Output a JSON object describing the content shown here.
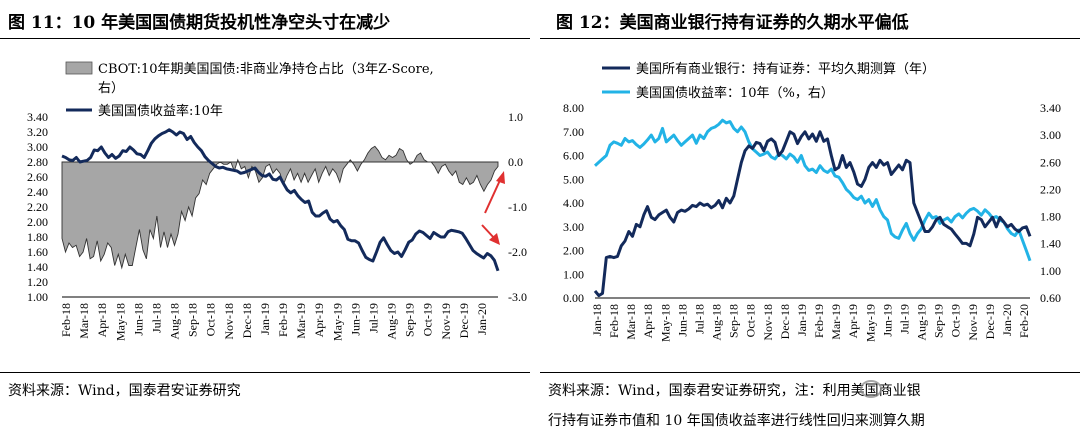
{
  "figure11": {
    "title": "图 11：10 年美国国债期货投机性净空头寸在减少",
    "source": "资料来源：Wind，国泰君安证券研究",
    "legend": {
      "area_label_line1": "CBOT:10年期美国国债:非商业净持仓占比（3年Z-Score,",
      "area_label_line2": "右）",
      "line_label": "美国国债收益率:10年"
    },
    "left_ticks": [
      "3.40",
      "3.20",
      "3.00",
      "2.80",
      "2.60",
      "2.40",
      "2.20",
      "2.00",
      "1.80",
      "1.60",
      "1.40",
      "1.20",
      "1.00"
    ],
    "right_ticks": [
      "1.0",
      "0.0",
      "-1.0",
      "-2.0",
      "-3.0"
    ],
    "x_ticks": [
      "Feb-18",
      "Mar-18",
      "Apr-18",
      "May-18",
      "Jun-18",
      "Jul-18",
      "Aug-18",
      "Sep-18",
      "Oct-18",
      "Nov-18",
      "Dec-18",
      "Jan-19",
      "Feb-19",
      "Mar-19",
      "Apr-19",
      "May-19",
      "Jun-19",
      "Jul-19",
      "Aug-19",
      "Sep-19",
      "Oct-19",
      "Nov-19",
      "Dec-19",
      "Jan-20"
    ],
    "colors": {
      "area": "#a6a6a6",
      "line": "#132a5b",
      "arrow": "#e03030"
    }
  },
  "figure12": {
    "title": "图 12：美国商业银行持有证券的久期水平偏低",
    "source_line1": "资料来源：Wind，国泰君安证券研究，注：利用美国商业银",
    "source_line2": "行持有证券市值和 10 年国债收益率进行线性回归来测算久期",
    "legend": {
      "dark_label": "美国所有商业银行：持有证券：平均久期测算（年）",
      "light_label": "美国国债收益率：10年（%，右）"
    },
    "left_ticks": [
      "8.00",
      "7.00",
      "6.00",
      "5.00",
      "4.00",
      "3.00",
      "2.00",
      "1.00",
      "0.00"
    ],
    "right_ticks": [
      "3.40",
      "3.00",
      "2.60",
      "2.20",
      "1.80",
      "1.40",
      "1.00",
      "0.60"
    ],
    "x_ticks": [
      "Jan-18",
      "Feb-18",
      "Mar-18",
      "Apr-18",
      "May-18",
      "Jun-18",
      "Jul-18",
      "Aug-18",
      "Sep-18",
      "Oct-18",
      "Nov-18",
      "Dec-18",
      "Jan-19",
      "Feb-19",
      "Mar-19",
      "Apr-19",
      "May-19",
      "Jun-19",
      "Jul-19",
      "Aug-19",
      "Sep-19",
      "Oct-19",
      "Nov-19",
      "Dec-19",
      "Jan-20",
      "Feb-20"
    ],
    "colors": {
      "dark": "#132a5b",
      "light": "#22b3e6"
    }
  },
  "chart_data": [
    {
      "type": "line",
      "title": "图 11：10 年美国国债期货投机性净空头寸在减少",
      "x_start": "Feb-18",
      "x_end": "Feb-20",
      "ylim_left": [
        1.0,
        3.4
      ],
      "ylim_right": [
        -3.0,
        1.0
      ],
      "series": [
        {
          "name": "美国国债收益率:10年",
          "axis": "left",
          "style": "line",
          "values": [
            2.88,
            2.86,
            2.83,
            2.82,
            2.86,
            2.8,
            2.81,
            2.82,
            2.86,
            2.96,
            2.95,
            3.0,
            2.92,
            2.86,
            2.9,
            2.85,
            2.88,
            2.95,
            2.94,
            3.0,
            2.96,
            2.91,
            2.9,
            2.86,
            2.95,
            3.05,
            3.11,
            3.15,
            3.18,
            3.2,
            3.23,
            3.2,
            3.16,
            3.2,
            3.18,
            3.1,
            3.14,
            3.06,
            3.0,
            2.95,
            2.87,
            2.82,
            2.78,
            2.74,
            2.72,
            2.73,
            2.71,
            2.7,
            2.69,
            2.68,
            2.65,
            2.66,
            2.68,
            2.7,
            2.72,
            2.66,
            2.62,
            2.61,
            2.64,
            2.57,
            2.56,
            2.6,
            2.51,
            2.43,
            2.39,
            2.42,
            2.35,
            2.3,
            2.26,
            2.28,
            2.13,
            2.08,
            2.08,
            2.12,
            2.15,
            2.04,
            2.0,
            2.02,
            1.95,
            1.9,
            1.77,
            1.75,
            1.75,
            1.72,
            1.62,
            1.53,
            1.5,
            1.48,
            1.6,
            1.73,
            1.79,
            1.7,
            1.62,
            1.58,
            1.6,
            1.54,
            1.63,
            1.73,
            1.76,
            1.84,
            1.88,
            1.86,
            1.82,
            1.78,
            1.86,
            1.83,
            1.8,
            1.8,
            1.87,
            1.89,
            1.88,
            1.87,
            1.85,
            1.78,
            1.7,
            1.62,
            1.58,
            1.55,
            1.52,
            1.58,
            1.55,
            1.49,
            1.35
          ]
        },
        {
          "name": "CBOT:10年期美国国债:非商业净持仓占比（3年Z-Score,右）",
          "axis": "right",
          "style": "area",
          "values": [
            -1.7,
            -2.0,
            -1.8,
            -1.9,
            -1.85,
            -2.1,
            -2.0,
            -1.7,
            -2.15,
            -2.1,
            -1.75,
            -2.2,
            -2.05,
            -1.8,
            -1.9,
            -2.3,
            -2.05,
            -2.35,
            -2.05,
            -2.3,
            -2.3,
            -1.9,
            -1.5,
            -1.95,
            -2.15,
            -1.5,
            -1.7,
            -1.2,
            -1.9,
            -1.55,
            -1.9,
            -1.6,
            -1.85,
            -1.6,
            -1.1,
            -1.3,
            -1.0,
            -1.2,
            -0.8,
            -0.7,
            -0.4,
            -0.5,
            -0.25,
            -0.15,
            -0.05,
            0.0,
            -0.05,
            -0.05,
            0.0,
            -0.2,
            0.05,
            -0.15,
            -0.1,
            -0.35,
            -0.1,
            -0.2,
            -0.45,
            -0.35,
            -0.1,
            -0.05,
            -0.25,
            -0.15,
            -0.25,
            -0.5,
            -0.3,
            -0.15,
            -0.4,
            -0.25,
            -0.45,
            -0.25,
            -0.45,
            -0.3,
            -0.15,
            -0.45,
            -0.25,
            -0.1,
            -0.3,
            -0.15,
            -0.25,
            -0.45,
            -0.15,
            -0.05,
            0.05,
            -0.05,
            -0.2,
            -0.05,
            0.05,
            0.2,
            0.3,
            0.35,
            0.25,
            0.1,
            0.05,
            0.15,
            0.1,
            0.15,
            0.3,
            0.25,
            0.05,
            -0.05,
            0.0,
            0.15,
            0.2,
            0.05,
            0.0,
            0.0,
            -0.1,
            -0.25,
            -0.1,
            -0.05,
            -0.2,
            -0.3,
            -0.2,
            -0.45,
            -0.5,
            -0.35,
            -0.5,
            -0.45,
            -0.3,
            -0.5,
            -0.65,
            -0.5,
            -0.4,
            -0.2,
            -0.1
          ]
        }
      ]
    },
    {
      "type": "line",
      "title": "图 12：美国商业银行持有证券的久期水平偏低",
      "x_start": "Jan-18",
      "x_end": "Feb-20",
      "ylim_left": [
        0.0,
        8.0
      ],
      "ylim_right": [
        0.6,
        3.4
      ],
      "series": [
        {
          "name": "美国所有商业银行：持有证券：平均久期测算（年）",
          "axis": "left",
          "values": [
            0.3,
            0.1,
            0.2,
            1.7,
            1.75,
            1.7,
            1.75,
            2.2,
            2.4,
            2.8,
            2.6,
            3.1,
            3.0,
            3.5,
            3.85,
            3.4,
            3.3,
            3.5,
            3.6,
            3.7,
            3.4,
            3.2,
            3.6,
            3.7,
            3.65,
            3.75,
            3.9,
            3.85,
            4.0,
            3.9,
            3.95,
            3.8,
            3.9,
            4.1,
            3.8,
            4.2,
            4.0,
            4.3,
            5.0,
            5.7,
            6.2,
            6.4,
            6.3,
            6.55,
            6.5,
            6.2,
            6.6,
            6.7,
            6.55,
            6.0,
            6.2,
            6.6,
            7.0,
            6.9,
            6.5,
            6.8,
            7.0,
            6.7,
            6.9,
            6.6,
            7.0,
            6.6,
            6.7,
            6.0,
            5.4,
            5.5,
            6.0,
            5.5,
            5.7,
            5.3,
            4.8,
            4.7,
            5.0,
            5.5,
            5.7,
            5.5,
            5.8,
            5.6,
            5.7,
            5.2,
            5.4,
            5.6,
            5.4,
            5.8,
            5.7,
            4.0,
            3.6,
            3.2,
            2.8,
            2.8,
            3.0,
            3.3,
            3.4,
            3.1,
            3.0,
            2.9,
            2.7,
            2.5,
            2.3,
            2.3,
            2.2,
            2.7,
            3.4,
            3.3,
            3.0,
            3.2,
            3.4,
            3.0,
            3.4,
            3.2,
            3.0,
            3.1,
            2.9,
            2.8,
            2.95,
            3.0,
            2.6
          ]
        },
        {
          "name": "美国国债收益率：10年（%，右）",
          "axis": "right",
          "values": [
            2.55,
            2.6,
            2.65,
            2.7,
            2.85,
            2.9,
            2.88,
            2.85,
            2.95,
            2.9,
            2.92,
            2.86,
            2.82,
            2.87,
            2.93,
            3.0,
            2.9,
            2.95,
            3.1,
            2.9,
            2.95,
            3.0,
            2.92,
            2.85,
            2.9,
            2.95,
            3.0,
            2.88,
            3.0,
            2.95,
            3.05,
            3.1,
            3.12,
            3.16,
            3.22,
            3.18,
            3.2,
            3.1,
            3.05,
            3.12,
            3.05,
            2.9,
            2.8,
            2.75,
            2.7,
            2.72,
            2.75,
            2.68,
            2.65,
            2.72,
            2.7,
            2.65,
            2.72,
            2.68,
            2.6,
            2.7,
            2.55,
            2.48,
            2.5,
            2.45,
            2.55,
            2.48,
            2.45,
            2.5,
            2.4,
            2.38,
            2.3,
            2.2,
            2.15,
            2.08,
            2.05,
            2.1,
            2.0,
            2.05,
            1.95,
            2.05,
            1.9,
            1.8,
            1.75,
            1.55,
            1.5,
            1.48,
            1.6,
            1.7,
            1.55,
            1.45,
            1.55,
            1.62,
            1.75,
            1.85,
            1.78,
            1.8,
            1.7,
            1.75,
            1.78,
            1.72,
            1.8,
            1.84,
            1.78,
            1.85,
            1.9,
            1.92,
            1.88,
            1.82,
            1.9,
            1.85,
            1.78,
            1.8,
            1.75,
            1.72,
            1.62,
            1.55,
            1.52,
            1.6,
            1.45,
            1.3,
            1.15
          ]
        }
      ]
    }
  ]
}
